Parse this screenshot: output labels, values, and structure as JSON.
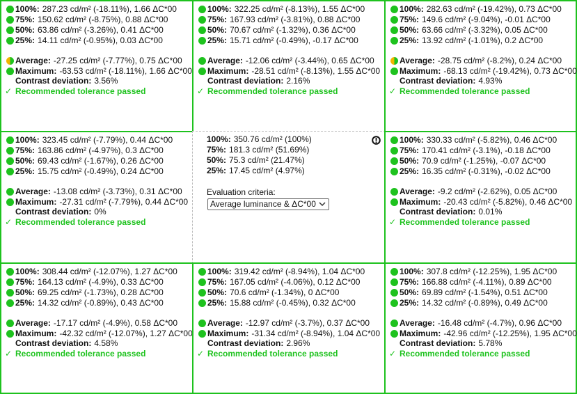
{
  "cells": [
    {
      "levels": [
        {
          "label": "100%:",
          "text": "287.23 cd/m² (-18.11%), 1.66 ΔC*00"
        },
        {
          "label": "75%:",
          "text": "150.62 cd/m² (-8.75%), 0.88 ΔC*00"
        },
        {
          "label": "50%:",
          "text": "63.86 cd/m² (-3.26%), 0.41 ΔC*00"
        },
        {
          "label": "25%:",
          "text": "14.11 cd/m² (-0.95%), 0.03 ΔC*00"
        }
      ],
      "average": {
        "label": "Average:",
        "text": "-27.25 cd/m² (-7.77%), 0.75 ΔC*00",
        "dot": "split"
      },
      "maximum": {
        "label": "Maximum:",
        "text": "-63.53 cd/m² (-18.11%), 1.66 ΔC*00"
      },
      "contrast": {
        "label": "Contrast deviation:",
        "text": "3.56%"
      },
      "status": "Recommended tolerance passed"
    },
    {
      "levels": [
        {
          "label": "100%:",
          "text": "322.25 cd/m² (-8.13%), 1.55 ΔC*00"
        },
        {
          "label": "75%:",
          "text": "167.93 cd/m² (-3.81%), 0.88 ΔC*00"
        },
        {
          "label": "50%:",
          "text": "70.67 cd/m² (-1.32%), 0.36 ΔC*00"
        },
        {
          "label": "25%:",
          "text": "15.71 cd/m² (-0.49%), -0.17 ΔC*00"
        }
      ],
      "average": {
        "label": "Average:",
        "text": "-12.06 cd/m² (-3.44%), 0.65 ΔC*00",
        "dot": "green"
      },
      "maximum": {
        "label": "Maximum:",
        "text": "-28.51 cd/m² (-8.13%), 1.55 ΔC*00"
      },
      "contrast": {
        "label": "Contrast deviation:",
        "text": "2.16%"
      },
      "status": "Recommended tolerance passed"
    },
    {
      "levels": [
        {
          "label": "100%:",
          "text": "282.63 cd/m² (-19.42%), 0.73 ΔC*00"
        },
        {
          "label": "75%:",
          "text": "149.6 cd/m² (-9.04%), -0.01 ΔC*00"
        },
        {
          "label": "50%:",
          "text": "63.66 cd/m² (-3.32%), 0.05 ΔC*00"
        },
        {
          "label": "25%:",
          "text": "13.92 cd/m² (-1.01%), 0.2 ΔC*00"
        }
      ],
      "average": {
        "label": "Average:",
        "text": "-28.75 cd/m² (-8.2%), 0.24 ΔC*00",
        "dot": "split"
      },
      "maximum": {
        "label": "Maximum:",
        "text": "-68.13 cd/m² (-19.42%), 0.73 ΔC*00"
      },
      "contrast": {
        "label": "Contrast deviation:",
        "text": "4.93%"
      },
      "status": "Recommended tolerance passed"
    },
    {
      "levels": [
        {
          "label": "100%:",
          "text": "323.45 cd/m² (-7.79%), 0.44 ΔC*00"
        },
        {
          "label": "75%:",
          "text": "163.86 cd/m² (-4.97%), 0.3 ΔC*00"
        },
        {
          "label": "50%:",
          "text": "69.43 cd/m² (-1.67%), 0.26 ΔC*00"
        },
        {
          "label": "25%:",
          "text": "15.75 cd/m² (-0.49%), 0.24 ΔC*00"
        }
      ],
      "average": {
        "label": "Average:",
        "text": "-13.08 cd/m² (-3.73%), 0.31 ΔC*00",
        "dot": "green"
      },
      "maximum": {
        "label": "Maximum:",
        "text": "-27.31 cd/m² (-7.79%), 0.44 ΔC*00"
      },
      "contrast": {
        "label": "Contrast deviation:",
        "text": "0%"
      },
      "status": "Recommended tolerance passed"
    },
    {
      "reference": true,
      "levels": [
        {
          "label": "100%:",
          "text": "350.76 cd/m² (100%)"
        },
        {
          "label": "75%:",
          "text": "181.3 cd/m² (51.69%)"
        },
        {
          "label": "50%:",
          "text": "75.3 cd/m² (21.47%)"
        },
        {
          "label": "25%:",
          "text": "17.45 cd/m² (4.97%)"
        }
      ],
      "criteria_label": "Evaluation criteria:",
      "criteria_value": "Average luminance & ΔC*00"
    },
    {
      "levels": [
        {
          "label": "100%:",
          "text": "330.33 cd/m² (-5.82%), 0.46 ΔC*00"
        },
        {
          "label": "75%:",
          "text": "170.41 cd/m² (-3.1%), -0.18 ΔC*00"
        },
        {
          "label": "50%:",
          "text": "70.9 cd/m² (-1.25%), -0.07 ΔC*00"
        },
        {
          "label": "25%:",
          "text": "16.35 cd/m² (-0.31%), -0.02 ΔC*00"
        }
      ],
      "average": {
        "label": "Average:",
        "text": "-9.2 cd/m² (-2.62%), 0.05 ΔC*00",
        "dot": "green"
      },
      "maximum": {
        "label": "Maximum:",
        "text": "-20.43 cd/m² (-5.82%), 0.46 ΔC*00"
      },
      "contrast": {
        "label": "Contrast deviation:",
        "text": "0.01%"
      },
      "status": "Recommended tolerance passed"
    },
    {
      "levels": [
        {
          "label": "100%:",
          "text": "308.44 cd/m² (-12.07%), 1.27 ΔC*00"
        },
        {
          "label": "75%:",
          "text": "164.13 cd/m² (-4.9%), 0.33 ΔC*00"
        },
        {
          "label": "50%:",
          "text": "69.25 cd/m² (-1.73%), 0.28 ΔC*00"
        },
        {
          "label": "25%:",
          "text": "14.32 cd/m² (-0.89%), 0.43 ΔC*00"
        }
      ],
      "average": {
        "label": "Average:",
        "text": "-17.17 cd/m² (-4.9%), 0.58 ΔC*00",
        "dot": "green"
      },
      "maximum": {
        "label": "Maximum:",
        "text": "-42.32 cd/m² (-12.07%), 1.27 ΔC*00"
      },
      "contrast": {
        "label": "Contrast deviation:",
        "text": "4.58%"
      },
      "status": "Recommended tolerance passed"
    },
    {
      "levels": [
        {
          "label": "100%:",
          "text": "319.42 cd/m² (-8.94%), 1.04 ΔC*00"
        },
        {
          "label": "75%:",
          "text": "167.05 cd/m² (-4.06%), 0.12 ΔC*00"
        },
        {
          "label": "50%:",
          "text": "70.6 cd/m² (-1.34%), 0 ΔC*00"
        },
        {
          "label": "25%:",
          "text": "15.88 cd/m² (-0.45%), 0.32 ΔC*00"
        }
      ],
      "average": {
        "label": "Average:",
        "text": "-12.97 cd/m² (-3.7%), 0.37 ΔC*00",
        "dot": "green"
      },
      "maximum": {
        "label": "Maximum:",
        "text": "-31.34 cd/m² (-8.94%), 1.04 ΔC*00"
      },
      "contrast": {
        "label": "Contrast deviation:",
        "text": "2.96%"
      },
      "status": "Recommended tolerance passed"
    },
    {
      "levels": [
        {
          "label": "100%:",
          "text": "307.8 cd/m² (-12.25%), 1.95 ΔC*00"
        },
        {
          "label": "75%:",
          "text": "166.88 cd/m² (-4.11%), 0.89 ΔC*00"
        },
        {
          "label": "50%:",
          "text": "69.89 cd/m² (-1.54%), 0.51 ΔC*00"
        },
        {
          "label": "25%:",
          "text": "14.32 cd/m² (-0.89%), 0.49 ΔC*00"
        }
      ],
      "average": {
        "label": "Average:",
        "text": "-16.48 cd/m² (-4.7%), 0.96 ΔC*00",
        "dot": "green"
      },
      "maximum": {
        "label": "Maximum:",
        "text": "-42.96 cd/m² (-12.25%), 1.95 ΔC*00"
      },
      "contrast": {
        "label": "Contrast deviation:",
        "text": "5.78%"
      },
      "status": "Recommended tolerance passed"
    }
  ]
}
